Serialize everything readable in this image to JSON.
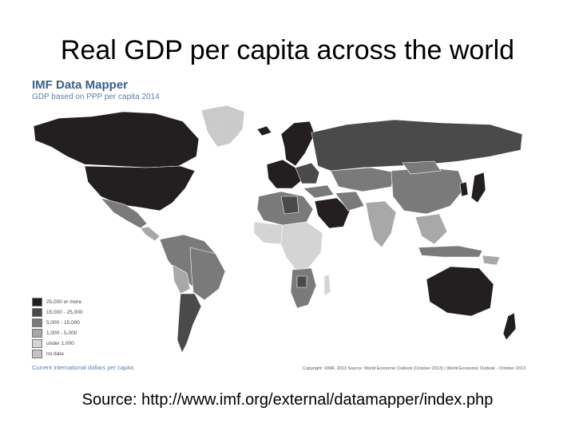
{
  "slide": {
    "title": "Real GDP per capita across the world",
    "source": "Source: http://www.imf.org/external/datamapper/index.php"
  },
  "map": {
    "title": "IMF Data Mapper",
    "subtitle": "GDP based on PPP per capita 2014",
    "units": "Current international dollars per capita",
    "copyright": "Copyright: ©IMF, 2013 Source: World Economic Outlook (October 2013) | World Economic Outlook - October 2013",
    "legend": [
      {
        "label": "25,000 or more",
        "color": "#231f20"
      },
      {
        "label": "15,000 - 25,000",
        "color": "#4a4a4a"
      },
      {
        "label": "5,000 - 15,000",
        "color": "#7a7a7a"
      },
      {
        "label": "1,000 - 5,000",
        "color": "#a8a8a8"
      },
      {
        "label": "under 1,000",
        "color": "#d4d4d4"
      },
      {
        "label": "no data",
        "color": "#c9c9c9"
      }
    ]
  }
}
